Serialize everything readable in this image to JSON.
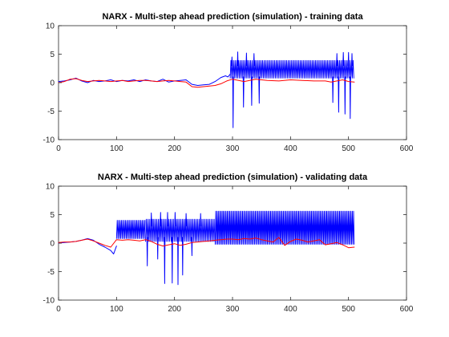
{
  "chart_data": [
    {
      "type": "line",
      "title": "NARX - Multi-step ahead prediction (simulation) - training data",
      "xlim": [
        0,
        600
      ],
      "ylim": [
        -10,
        10
      ],
      "xticks": [
        0,
        100,
        200,
        300,
        400,
        500,
        600
      ],
      "yticks": [
        -10,
        -5,
        0,
        5,
        10
      ],
      "grid": false,
      "legend": "none",
      "series": [
        {
          "color": "#0000ff",
          "segments": [
            {
              "type": "points",
              "x": [
                0,
                10,
                20,
                30,
                40,
                50,
                60,
                70,
                80,
                90,
                100,
                110,
                120,
                130,
                140,
                150,
                160,
                170,
                180,
                190,
                200,
                210,
                220,
                230,
                240,
                250,
                260,
                270,
                280,
                288,
                292,
                296
              ],
              "y": [
                0.2,
                0.3,
                0.5,
                0.8,
                0.3,
                0.0,
                0.4,
                0.2,
                0.3,
                0.5,
                0.2,
                0.4,
                0.3,
                0.5,
                0.2,
                0.5,
                0.3,
                0.2,
                0.6,
                0.1,
                0.3,
                0.4,
                0.5,
                -0.3,
                -0.5,
                -0.4,
                -0.3,
                0.2,
                0.9,
                1.2,
                1.0,
                1.5
              ]
            },
            {
              "type": "osc",
              "x0": 296,
              "x1": 510,
              "period": 2.6,
              "lo": 0.8,
              "hi": 3.9
            },
            {
              "type": "spikes",
              "x": [
                301,
                319,
                333,
                346,
                473,
                483,
                494,
                503
              ],
              "y": [
                -7.9,
                -4.3,
                -4.0,
                -3.6,
                -3.5,
                -5.2,
                -5.5,
                -6.3
              ]
            },
            {
              "type": "spikes",
              "x": [
                299,
                309,
                324,
                337,
                480,
                491,
                500,
                506
              ],
              "y": [
                4.5,
                5.4,
                5.2,
                5.1,
                5.1,
                5.3,
                5.3,
                5.1
              ]
            }
          ]
        },
        {
          "color": "#ff0000",
          "segments": [
            {
              "type": "points",
              "x": [
                0,
                10,
                20,
                30,
                40,
                50,
                60,
                70,
                80,
                90,
                100,
                110,
                120,
                130,
                140,
                150,
                160,
                170,
                180,
                190,
                200,
                210,
                220,
                230,
                240,
                250,
                260,
                270,
                280,
                290,
                300,
                320,
                340,
                360,
                380,
                400,
                420,
                440,
                460,
                470,
                480,
                490,
                500,
                510
              ],
              "y": [
                0.0,
                0.2,
                0.6,
                0.7,
                0.4,
                0.2,
                0.3,
                0.4,
                0.3,
                0.2,
                0.3,
                0.4,
                0.2,
                0.3,
                0.4,
                0.4,
                0.3,
                0.2,
                0.3,
                0.4,
                0.3,
                0.2,
                0.1,
                -0.7,
                -0.8,
                -0.7,
                -0.6,
                -0.5,
                -0.2,
                0.3,
                0.6,
                0.2,
                0.6,
                0.4,
                0.3,
                0.5,
                0.4,
                0.3,
                0.3,
                0.1,
                0.3,
                0.5,
                0.2,
                0.1
              ]
            }
          ]
        }
      ]
    },
    {
      "type": "line",
      "title": "NARX - Multi-step ahead prediction (simulation) - validating data",
      "xlim": [
        0,
        600
      ],
      "ylim": [
        -10,
        10
      ],
      "xticks": [
        0,
        100,
        200,
        300,
        400,
        500,
        600
      ],
      "yticks": [
        -10,
        -5,
        0,
        5,
        10
      ],
      "grid": false,
      "legend": "none",
      "series": [
        {
          "color": "#0000ff",
          "segments": [
            {
              "type": "points",
              "x": [
                0,
                10,
                20,
                30,
                40,
                50,
                60,
                70,
                80,
                90,
                95,
                100
              ],
              "y": [
                0.0,
                0.1,
                0.2,
                0.3,
                0.5,
                0.8,
                0.5,
                -0.2,
                -0.7,
                -1.3,
                -1.9,
                -0.5
              ]
            },
            {
              "type": "osc",
              "x0": 100,
              "x1": 150,
              "period": 2.4,
              "lo": 0.8,
              "hi": 4.0
            },
            {
              "type": "osc",
              "x0": 150,
              "x1": 270,
              "period": 2.6,
              "lo": 0.3,
              "hi": 4.2
            },
            {
              "type": "osc",
              "x0": 270,
              "x1": 510,
              "period": 2.2,
              "lo": -0.2,
              "hi": 5.6
            },
            {
              "type": "spikes",
              "x": [
                153,
                171,
                183,
                196,
                206,
                214,
                230
              ],
              "y": [
                -4.0,
                -2.8,
                -7.1,
                -7.0,
                -7.3,
                -5.6,
                -2.2
              ]
            },
            {
              "type": "spikes",
              "x": [
                160,
                176,
                188,
                201,
                220,
                245
              ],
              "y": [
                5.3,
                5.4,
                5.4,
                5.4,
                5.2,
                5.2
              ]
            }
          ]
        },
        {
          "color": "#ff0000",
          "segments": [
            {
              "type": "points",
              "x": [
                0,
                10,
                20,
                30,
                40,
                50,
                60,
                70,
                80,
                90,
                100,
                110,
                120,
                130,
                140,
                150,
                160,
                170,
                180,
                190,
                200,
                210,
                220,
                230,
                240,
                250,
                260,
                270,
                280,
                290,
                300,
                310,
                320,
                330,
                340,
                350,
                360,
                370,
                380,
                390,
                400,
                410,
                420,
                430,
                440,
                450,
                460,
                470,
                480,
                490,
                500,
                510
              ],
              "y": [
                0.1,
                0.2,
                0.2,
                0.3,
                0.5,
                0.7,
                0.4,
                0.0,
                -0.4,
                -0.7,
                0.6,
                0.5,
                0.6,
                0.5,
                0.4,
                0.6,
                0.3,
                -0.2,
                -0.5,
                -0.3,
                -0.1,
                -0.4,
                -0.2,
                0.1,
                0.2,
                0.3,
                0.4,
                0.5,
                0.6,
                0.7,
                0.7,
                0.6,
                0.8,
                0.7,
                0.9,
                0.6,
                0.4,
                0.2,
                1.0,
                -0.4,
                0.3,
                0.7,
                0.5,
                0.2,
                0.4,
                0.6,
                -0.3,
                -0.1,
                0.1,
                -0.3,
                -0.8,
                -0.7
              ]
            }
          ]
        }
      ]
    }
  ]
}
